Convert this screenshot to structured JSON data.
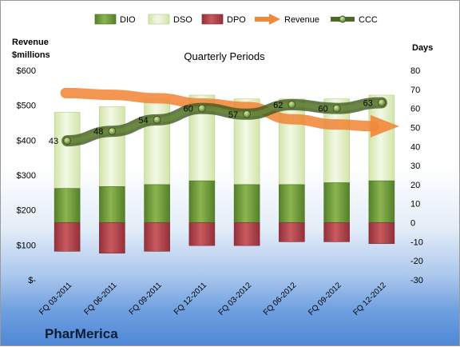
{
  "chart_data": {
    "type": "bar",
    "subtitle": "Quarterly Periods",
    "company": "PharMerica",
    "left_axis_title": [
      "Revenue",
      "$millions"
    ],
    "right_axis_title": "Days",
    "left_axis": {
      "min": 0,
      "max": 600,
      "step": 100,
      "tick_labels": [
        "$-",
        "$100",
        "$200",
        "$300",
        "$400",
        "$500",
        "$600"
      ]
    },
    "right_axis": {
      "min": -30,
      "max": 80,
      "step": 10
    },
    "categories": [
      "FQ 03-2011",
      "FQ 06-2011",
      "FQ 09-2011",
      "FQ 12-2011",
      "FQ 03-2012",
      "FQ 06-2012",
      "FQ 09-2012",
      "FQ 12-2012"
    ],
    "series": [
      {
        "name": "DIO",
        "kind": "bar",
        "axis": "days",
        "color": "#6e9b35",
        "values": [
          18,
          19,
          20,
          22,
          20,
          20,
          21,
          22
        ]
      },
      {
        "name": "DSO",
        "kind": "bar",
        "axis": "days",
        "color": "#e2efc7",
        "values": [
          40,
          42,
          45,
          45,
          45,
          45,
          44,
          45
        ]
      },
      {
        "name": "DPO",
        "kind": "bar",
        "axis": "days",
        "color": "#b5444a",
        "values": [
          -15,
          -16,
          -15,
          -12,
          -12,
          -10,
          -10,
          -11
        ]
      },
      {
        "name": "Revenue",
        "kind": "line",
        "axis": "revenue",
        "color": "#f0883a",
        "values": [
          535,
          530,
          520,
          505,
          495,
          460,
          445,
          440
        ]
      },
      {
        "name": "CCC",
        "kind": "line",
        "axis": "days",
        "color": "#5f7d31",
        "values": [
          43,
          48,
          54,
          60,
          57,
          62,
          60,
          63
        ],
        "labels": [
          "43",
          "48",
          "54",
          "60",
          "57",
          "62",
          "60",
          "63"
        ]
      }
    ],
    "legend_position": "top",
    "grid": false
  }
}
